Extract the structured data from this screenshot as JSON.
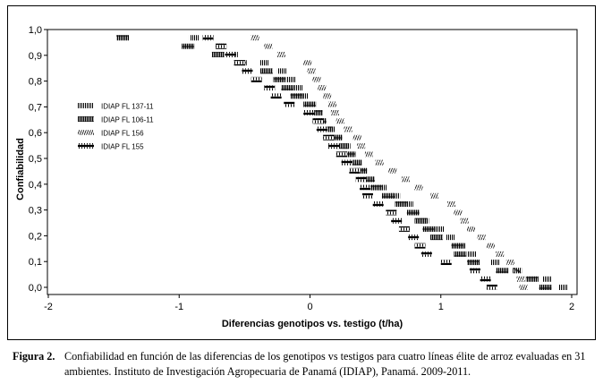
{
  "chart_data": {
    "type": "scatter",
    "title": "",
    "xlabel": "Diferencias genotipos vs. testigo (t/ha)",
    "ylabel": "Confiabilidad",
    "xlim": [
      -2,
      2
    ],
    "ylim": [
      0,
      1
    ],
    "x_ticks": [
      "-2",
      "-1",
      "0",
      "1",
      "2"
    ],
    "y_ticks": [
      "0,0",
      "0,1",
      "0,2",
      "0,3",
      "0,4",
      "0,5",
      "0,6",
      "0,7",
      "0,8",
      "0,9",
      "1,0"
    ],
    "legend_position": "left",
    "grid": false,
    "series": [
      {
        "name": "IDIAP FL 137-11",
        "pattern": "vertical-bars",
        "points": [
          {
            "x": -0.92,
            "y": 0.968
          },
          {
            "x": -0.72,
            "y": 0.935
          },
          {
            "x": -0.62,
            "y": 0.903
          },
          {
            "x": -0.38,
            "y": 0.871
          },
          {
            "x": -0.25,
            "y": 0.839
          },
          {
            "x": -0.18,
            "y": 0.806
          },
          {
            "x": -0.12,
            "y": 0.774
          },
          {
            "x": -0.08,
            "y": 0.742
          },
          {
            "x": -0.04,
            "y": 0.71
          },
          {
            "x": 0.0,
            "y": 0.677
          },
          {
            "x": 0.05,
            "y": 0.645
          },
          {
            "x": 0.12,
            "y": 0.613
          },
          {
            "x": 0.18,
            "y": 0.581
          },
          {
            "x": 0.24,
            "y": 0.548
          },
          {
            "x": 0.28,
            "y": 0.516
          },
          {
            "x": 0.33,
            "y": 0.484
          },
          {
            "x": 0.37,
            "y": 0.452
          },
          {
            "x": 0.42,
            "y": 0.419
          },
          {
            "x": 0.52,
            "y": 0.387
          },
          {
            "x": 0.62,
            "y": 0.355
          },
          {
            "x": 0.72,
            "y": 0.323
          },
          {
            "x": 0.76,
            "y": 0.29
          },
          {
            "x": 0.84,
            "y": 0.258
          },
          {
            "x": 0.96,
            "y": 0.226
          },
          {
            "x": 1.04,
            "y": 0.194
          },
          {
            "x": 1.12,
            "y": 0.161
          },
          {
            "x": 1.2,
            "y": 0.129
          },
          {
            "x": 1.38,
            "y": 0.097
          },
          {
            "x": 1.55,
            "y": 0.065
          },
          {
            "x": 1.78,
            "y": 0.032
          },
          {
            "x": 1.9,
            "y": 0.0
          }
        ]
      },
      {
        "name": "IDIAP FL 106-11",
        "pattern": "dense-bars",
        "points": [
          {
            "x": -1.48,
            "y": 0.968
          },
          {
            "x": -0.98,
            "y": 0.935
          },
          {
            "x": -0.75,
            "y": 0.903
          },
          {
            "x": -0.58,
            "y": 0.871
          },
          {
            "x": -0.38,
            "y": 0.839
          },
          {
            "x": -0.28,
            "y": 0.806
          },
          {
            "x": -0.22,
            "y": 0.774
          },
          {
            "x": -0.15,
            "y": 0.742
          },
          {
            "x": -0.05,
            "y": 0.71
          },
          {
            "x": 0.0,
            "y": 0.677
          },
          {
            "x": 0.03,
            "y": 0.645
          },
          {
            "x": 0.08,
            "y": 0.613
          },
          {
            "x": 0.15,
            "y": 0.581
          },
          {
            "x": 0.2,
            "y": 0.548
          },
          {
            "x": 0.25,
            "y": 0.516
          },
          {
            "x": 0.3,
            "y": 0.484
          },
          {
            "x": 0.34,
            "y": 0.452
          },
          {
            "x": 0.4,
            "y": 0.419
          },
          {
            "x": 0.46,
            "y": 0.387
          },
          {
            "x": 0.55,
            "y": 0.355
          },
          {
            "x": 0.65,
            "y": 0.323
          },
          {
            "x": 0.74,
            "y": 0.29
          },
          {
            "x": 0.8,
            "y": 0.258
          },
          {
            "x": 0.86,
            "y": 0.226
          },
          {
            "x": 0.92,
            "y": 0.194
          },
          {
            "x": 1.08,
            "y": 0.161
          },
          {
            "x": 1.1,
            "y": 0.129
          },
          {
            "x": 1.2,
            "y": 0.097
          },
          {
            "x": 1.42,
            "y": 0.065
          },
          {
            "x": 1.65,
            "y": 0.032
          },
          {
            "x": 1.75,
            "y": 0.0
          }
        ]
      },
      {
        "name": "IDIAP FL 156",
        "pattern": "hatched",
        "points": [
          {
            "x": -0.45,
            "y": 0.968
          },
          {
            "x": -0.35,
            "y": 0.935
          },
          {
            "x": -0.25,
            "y": 0.903
          },
          {
            "x": -0.05,
            "y": 0.871
          },
          {
            "x": -0.02,
            "y": 0.839
          },
          {
            "x": 0.02,
            "y": 0.806
          },
          {
            "x": 0.06,
            "y": 0.774
          },
          {
            "x": 0.1,
            "y": 0.742
          },
          {
            "x": 0.14,
            "y": 0.71
          },
          {
            "x": 0.16,
            "y": 0.677
          },
          {
            "x": 0.2,
            "y": 0.645
          },
          {
            "x": 0.26,
            "y": 0.613
          },
          {
            "x": 0.33,
            "y": 0.581
          },
          {
            "x": 0.36,
            "y": 0.548
          },
          {
            "x": 0.42,
            "y": 0.516
          },
          {
            "x": 0.5,
            "y": 0.484
          },
          {
            "x": 0.6,
            "y": 0.452
          },
          {
            "x": 0.7,
            "y": 0.419
          },
          {
            "x": 0.8,
            "y": 0.387
          },
          {
            "x": 0.92,
            "y": 0.355
          },
          {
            "x": 1.05,
            "y": 0.323
          },
          {
            "x": 1.1,
            "y": 0.29
          },
          {
            "x": 1.15,
            "y": 0.258
          },
          {
            "x": 1.2,
            "y": 0.226
          },
          {
            "x": 1.28,
            "y": 0.194
          },
          {
            "x": 1.35,
            "y": 0.161
          },
          {
            "x": 1.42,
            "y": 0.129
          },
          {
            "x": 1.5,
            "y": 0.097
          },
          {
            "x": 1.55,
            "y": 0.065
          },
          {
            "x": 1.58,
            "y": 0.032
          },
          {
            "x": 1.6,
            "y": 0.0
          }
        ]
      },
      {
        "name": "IDIAP FL 155",
        "pattern": "boxed",
        "points": [
          {
            "x": -0.82,
            "y": 0.968
          },
          {
            "x": -0.72,
            "y": 0.935
          },
          {
            "x": -0.65,
            "y": 0.903
          },
          {
            "x": -0.58,
            "y": 0.871
          },
          {
            "x": -0.52,
            "y": 0.839
          },
          {
            "x": -0.45,
            "y": 0.806
          },
          {
            "x": -0.35,
            "y": 0.774
          },
          {
            "x": -0.3,
            "y": 0.742
          },
          {
            "x": -0.2,
            "y": 0.71
          },
          {
            "x": -0.05,
            "y": 0.677
          },
          {
            "x": 0.02,
            "y": 0.645
          },
          {
            "x": 0.05,
            "y": 0.613
          },
          {
            "x": 0.1,
            "y": 0.581
          },
          {
            "x": 0.14,
            "y": 0.548
          },
          {
            "x": 0.2,
            "y": 0.516
          },
          {
            "x": 0.24,
            "y": 0.484
          },
          {
            "x": 0.3,
            "y": 0.452
          },
          {
            "x": 0.35,
            "y": 0.419
          },
          {
            "x": 0.38,
            "y": 0.387
          },
          {
            "x": 0.4,
            "y": 0.355
          },
          {
            "x": 0.48,
            "y": 0.323
          },
          {
            "x": 0.58,
            "y": 0.29
          },
          {
            "x": 0.62,
            "y": 0.258
          },
          {
            "x": 0.68,
            "y": 0.226
          },
          {
            "x": 0.75,
            "y": 0.194
          },
          {
            "x": 0.8,
            "y": 0.161
          },
          {
            "x": 0.85,
            "y": 0.129
          },
          {
            "x": 1.0,
            "y": 0.097
          },
          {
            "x": 1.22,
            "y": 0.065
          },
          {
            "x": 1.3,
            "y": 0.032
          },
          {
            "x": 1.35,
            "y": 0.0
          }
        ]
      }
    ]
  },
  "caption": {
    "label": "Figura 2.",
    "text": "Confiabilidad en función de las diferencias de los genotipos vs testigos para cuatro líneas élite de arroz evaluadas en 31 ambientes. Instituto de Investigación Agropecuaria de Panamá (IDIAP), Panamá. 2009-2011."
  }
}
